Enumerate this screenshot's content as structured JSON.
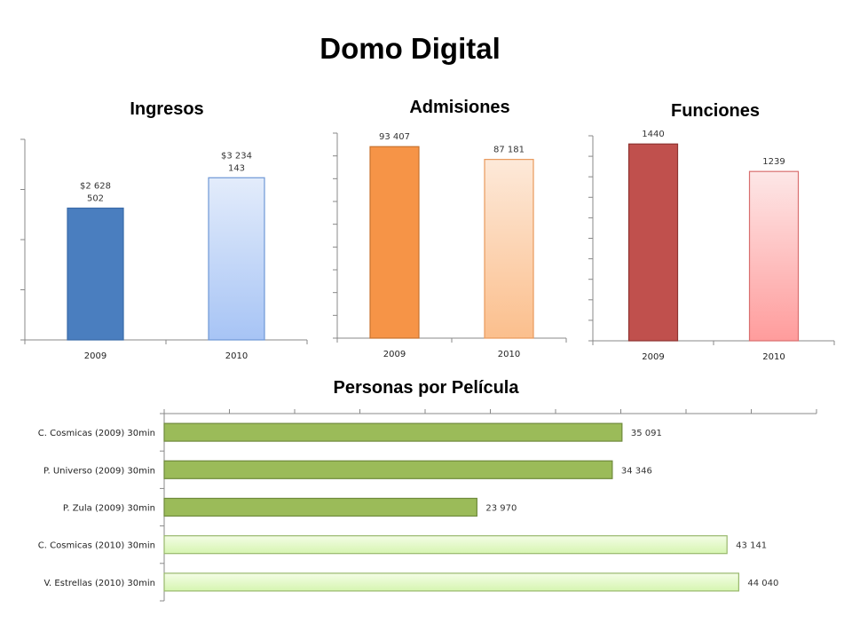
{
  "page": {
    "title": "Domo Digital"
  },
  "chart_data": [
    {
      "id": "ingresos",
      "type": "bar",
      "title": "Ingresos",
      "categories": [
        "2009",
        "2010"
      ],
      "values": [
        2628502,
        3234143
      ],
      "data_labels": [
        [
          "$2 628",
          "502"
        ],
        [
          "$3 234",
          "143"
        ]
      ],
      "ylim": [
        0,
        4000000
      ],
      "gridlines": false,
      "fills": [
        [
          "#4a7ebf",
          "#4a7ebf"
        ],
        [
          "#e3ecfb",
          "#a7c4f5"
        ]
      ],
      "strokes": [
        "#3a6aa8",
        "#6e98d6"
      ]
    },
    {
      "id": "admisiones",
      "type": "bar",
      "title": "Admisiones",
      "categories": [
        "2009",
        "2010"
      ],
      "values": [
        93407,
        87181
      ],
      "data_labels": [
        [
          "93 407"
        ],
        [
          "87 181"
        ]
      ],
      "ylim": [
        0,
        100000
      ],
      "gridlines": false,
      "fills": [
        [
          "#f69447",
          "#f69447"
        ],
        [
          "#fde9d9",
          "#fbbf8d"
        ]
      ],
      "strokes": [
        "#c8732e",
        "#e89a5c"
      ]
    },
    {
      "id": "funciones",
      "type": "bar",
      "title": "Funciones",
      "categories": [
        "2009",
        "2010"
      ],
      "values": [
        1440,
        1239
      ],
      "data_labels": [
        [
          "1440"
        ],
        [
          "1239"
        ]
      ],
      "ylim": [
        0,
        1500
      ],
      "gridlines": false,
      "fills": [
        [
          "#c0504d",
          "#c0504d"
        ],
        [
          "#fde7e7",
          "#ff9c9c"
        ]
      ],
      "strokes": [
        "#8f3431",
        "#d96f6f"
      ]
    },
    {
      "id": "personas",
      "type": "bar",
      "orientation": "horizontal",
      "title": "Personas por Película",
      "categories": [
        "C. Cosmicas (2009) 30min",
        "P. Universo (2009) 30min",
        "P. Zula (2009) 30min",
        "C. Cosmicas (2010) 30min",
        "V. Estrellas (2010) 30min"
      ],
      "values": [
        35091,
        34346,
        23970,
        43141,
        44040
      ],
      "data_labels": [
        "35 091",
        "34 346",
        "23 970",
        "43 141",
        "44 040"
      ],
      "xlim": [
        0,
        50000
      ],
      "gridlines": false,
      "fills": [
        [
          "#9bbb59",
          "#9bbb59"
        ],
        [
          "#9bbb59",
          "#9bbb59"
        ],
        [
          "#9bbb59",
          "#9bbb59"
        ],
        [
          "#f4fde6",
          "#d6f5b0"
        ],
        [
          "#f4fde6",
          "#d6f5b0"
        ]
      ],
      "strokes": [
        "#6f8a3c",
        "#6f8a3c",
        "#6f8a3c",
        "#98b86c",
        "#98b86c"
      ]
    }
  ]
}
